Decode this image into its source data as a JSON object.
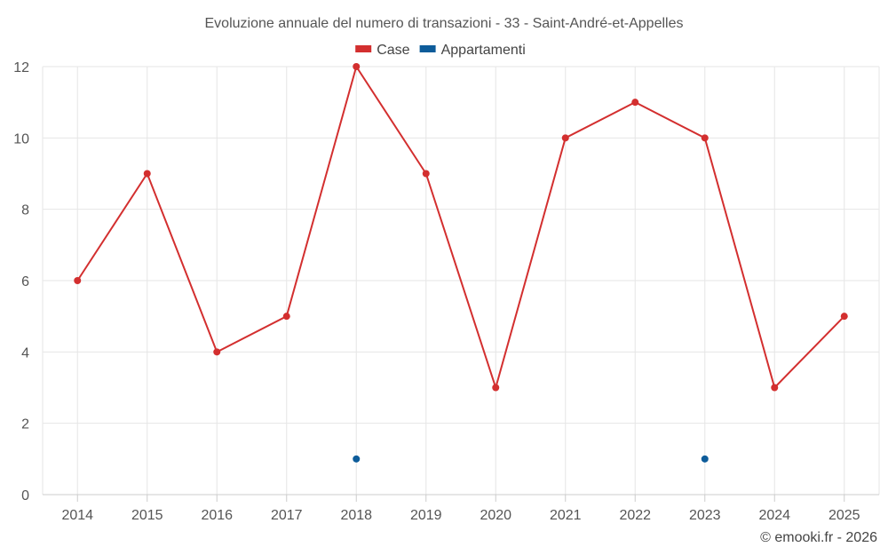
{
  "chart_data": {
    "type": "line",
    "title": "Evoluzione annuale del numero di transazioni - 33 - Saint-André-et-Appelles",
    "categories": [
      "2014",
      "2015",
      "2016",
      "2017",
      "2018",
      "2019",
      "2020",
      "2021",
      "2022",
      "2023",
      "2024",
      "2025"
    ],
    "series": [
      {
        "name": "Case",
        "color": "#d32f2f",
        "values": [
          6,
          9,
          4,
          5,
          12,
          9,
          3,
          10,
          11,
          10,
          3,
          5
        ]
      },
      {
        "name": "Appartamenti",
        "color": "#0d5c9a",
        "values": [
          null,
          null,
          null,
          null,
          1,
          null,
          null,
          null,
          null,
          1,
          null,
          null
        ]
      }
    ],
    "ylim": [
      0,
      12
    ],
    "yticks": [
      0,
      2,
      4,
      6,
      8,
      10,
      12
    ],
    "xlabel": "",
    "ylabel": "",
    "grid": true,
    "legend": "top-center"
  },
  "credit": "© emooki.fr - 2026"
}
